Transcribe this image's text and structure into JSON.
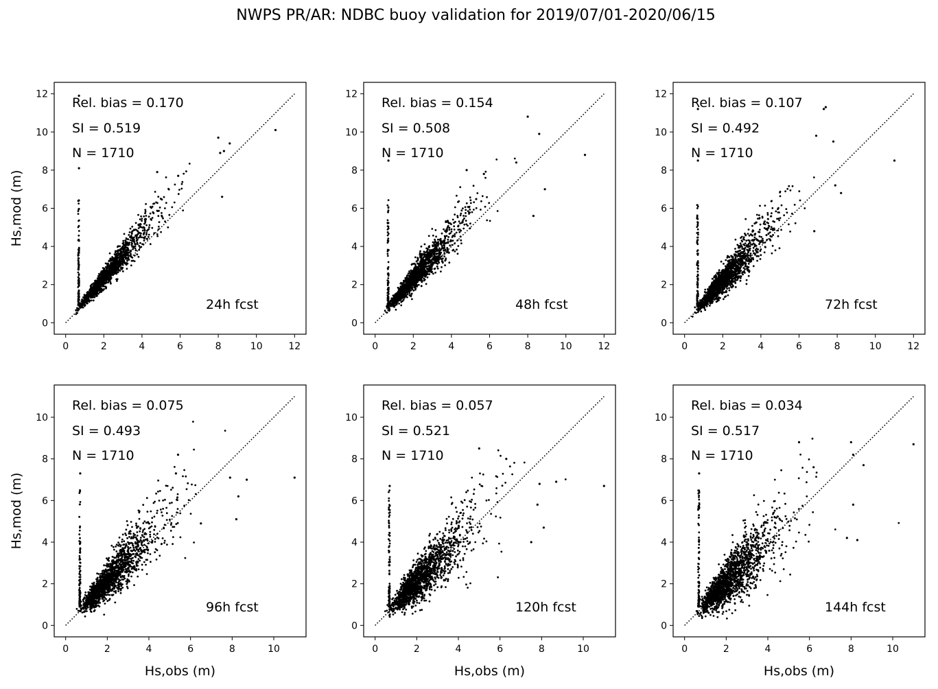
{
  "figure": {
    "title": "NWPS PR/AR: NDBC buoy validation for 2019/07/01-2020/06/15"
  },
  "style": {
    "point_color": "#000000",
    "line_color": "#000000",
    "background": "#ffffff"
  },
  "chart_data": [
    {
      "type": "scatter",
      "title": "",
      "xlabel": "",
      "ylabel": "Hs,mod (m)",
      "xlim": [
        -0.6,
        12.6
      ],
      "ylim": [
        -0.6,
        12.6
      ],
      "xticks": [
        "0",
        "2",
        "4",
        "6",
        "8",
        "10",
        "12"
      ],
      "yticks": [
        "0",
        "2",
        "4",
        "6",
        "8",
        "10",
        "12"
      ],
      "identity_line": [
        0,
        12
      ],
      "stats": {
        "rel_bias": "Rel. bias =  0.170",
        "si": "SI =  0.519",
        "n": "N = 1710"
      },
      "annotation": "24h fcst",
      "n_points": 1710,
      "rel_bias": 0.17,
      "scatter_index": 0.519,
      "outliers": [
        [
          8.0,
          9.7
        ],
        [
          8.1,
          8.9
        ],
        [
          8.3,
          9.0
        ],
        [
          8.6,
          9.4
        ],
        [
          8.2,
          6.6
        ],
        [
          11.0,
          10.1
        ],
        [
          0.7,
          11.9
        ],
        [
          0.7,
          8.1
        ],
        [
          4.8,
          7.9
        ],
        [
          5.9,
          7.7
        ]
      ]
    },
    {
      "type": "scatter",
      "title": "",
      "xlabel": "",
      "ylabel": "",
      "xlim": [
        -0.6,
        12.6
      ],
      "ylim": [
        -0.6,
        12.6
      ],
      "xticks": [
        "0",
        "2",
        "4",
        "6",
        "8",
        "10",
        "12"
      ],
      "yticks": [
        "0",
        "2",
        "4",
        "6",
        "8",
        "10",
        "12"
      ],
      "identity_line": [
        0,
        12
      ],
      "stats": {
        "rel_bias": "Rel. bias =  0.154",
        "si": "SI =  0.508",
        "n": "N = 1710"
      },
      "annotation": "48h fcst",
      "n_points": 1710,
      "rel_bias": 0.154,
      "scatter_index": 0.508,
      "outliers": [
        [
          8.0,
          10.8
        ],
        [
          8.6,
          9.9
        ],
        [
          11.0,
          8.8
        ],
        [
          8.3,
          5.6
        ],
        [
          8.9,
          7.0
        ],
        [
          7.4,
          8.4
        ],
        [
          0.7,
          8.5
        ],
        [
          4.8,
          8.0
        ],
        [
          5.7,
          7.8
        ]
      ]
    },
    {
      "type": "scatter",
      "title": "",
      "xlabel": "",
      "ylabel": "",
      "xlim": [
        -0.6,
        12.6
      ],
      "ylim": [
        -0.6,
        12.6
      ],
      "xticks": [
        "0",
        "2",
        "4",
        "6",
        "8",
        "10",
        "12"
      ],
      "yticks": [
        "0",
        "2",
        "4",
        "6",
        "8",
        "10",
        "12"
      ],
      "identity_line": [
        0,
        12
      ],
      "stats": {
        "rel_bias": "Rel. bias =  0.107",
        "si": "SI =  0.492",
        "n": "N = 1710"
      },
      "annotation": "72h fcst",
      "n_points": 1710,
      "rel_bias": 0.107,
      "scatter_index": 0.492,
      "outliers": [
        [
          7.3,
          11.2
        ],
        [
          7.4,
          11.3
        ],
        [
          6.9,
          9.8
        ],
        [
          7.8,
          9.5
        ],
        [
          11.0,
          8.5
        ],
        [
          8.2,
          6.8
        ],
        [
          7.9,
          7.2
        ],
        [
          0.7,
          11.2
        ],
        [
          0.7,
          8.5
        ],
        [
          6.8,
          4.8
        ]
      ]
    },
    {
      "type": "scatter",
      "title": "",
      "xlabel": "Hs,obs (m)",
      "ylabel": "Hs,mod (m)",
      "xlim": [
        -0.55,
        11.55
      ],
      "ylim": [
        -0.55,
        11.55
      ],
      "xticks": [
        "0",
        "2",
        "4",
        "6",
        "8",
        "10"
      ],
      "yticks": [
        "0",
        "2",
        "4",
        "6",
        "8",
        "10"
      ],
      "identity_line": [
        0,
        11
      ],
      "stats": {
        "rel_bias": "Rel. bias =  0.075",
        "si": "SI =  0.493",
        "n": "N = 1710"
      },
      "annotation": "96h fcst",
      "n_points": 1710,
      "rel_bias": 0.075,
      "scatter_index": 0.493,
      "outliers": [
        [
          11.0,
          7.1
        ],
        [
          8.7,
          7.0
        ],
        [
          8.3,
          6.2
        ],
        [
          8.2,
          5.1
        ],
        [
          7.9,
          7.1
        ],
        [
          5.4,
          8.2
        ],
        [
          5.3,
          7.3
        ],
        [
          0.7,
          7.3
        ],
        [
          6.5,
          4.9
        ]
      ]
    },
    {
      "type": "scatter",
      "title": "",
      "xlabel": "Hs,obs (m)",
      "ylabel": "",
      "xlim": [
        -0.55,
        11.55
      ],
      "ylim": [
        -0.55,
        11.55
      ],
      "xticks": [
        "0",
        "2",
        "4",
        "6",
        "8",
        "10"
      ],
      "yticks": [
        "0",
        "2",
        "4",
        "6",
        "8",
        "10"
      ],
      "identity_line": [
        0,
        11
      ],
      "stats": {
        "rel_bias": "Rel. bias =  0.057",
        "si": "SI =  0.521",
        "n": "N = 1710"
      },
      "annotation": "120h fcst",
      "n_points": 1710,
      "rel_bias": 0.057,
      "scatter_index": 0.521,
      "outliers": [
        [
          11.0,
          6.7
        ],
        [
          8.7,
          6.9
        ],
        [
          7.8,
          5.8
        ],
        [
          7.5,
          4.0
        ],
        [
          8.1,
          4.7
        ],
        [
          5.0,
          8.5
        ],
        [
          6.3,
          8.0
        ],
        [
          0.7,
          6.7
        ],
        [
          7.9,
          6.8
        ]
      ]
    },
    {
      "type": "scatter",
      "title": "",
      "xlabel": "Hs,obs (m)",
      "ylabel": "",
      "xlim": [
        -0.55,
        11.55
      ],
      "ylim": [
        -0.55,
        11.55
      ],
      "xticks": [
        "0",
        "2",
        "4",
        "6",
        "8",
        "10"
      ],
      "yticks": [
        "0",
        "2",
        "4",
        "6",
        "8",
        "10"
      ],
      "identity_line": [
        0,
        11
      ],
      "stats": {
        "rel_bias": "Rel. bias =  0.034",
        "si": "SI =  0.517",
        "n": "N = 1710"
      },
      "annotation": "144h fcst",
      "n_points": 1710,
      "rel_bias": 0.034,
      "scatter_index": 0.517,
      "outliers": [
        [
          11.0,
          8.7
        ],
        [
          8.0,
          8.8
        ],
        [
          8.1,
          8.2
        ],
        [
          8.6,
          7.7
        ],
        [
          8.1,
          5.8
        ],
        [
          8.3,
          4.1
        ],
        [
          7.8,
          4.2
        ],
        [
          5.5,
          8.8
        ],
        [
          0.7,
          7.3
        ],
        [
          6.2,
          7.6
        ]
      ]
    }
  ]
}
